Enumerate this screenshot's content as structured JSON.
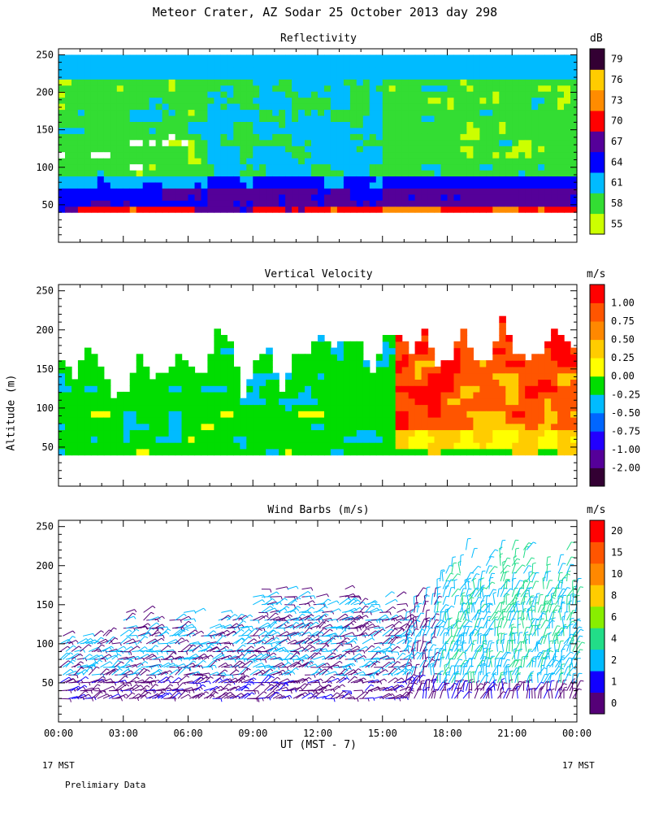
{
  "title": "Meteor Crater, AZ  Sodar  25 October 2013  day 298",
  "y_axis_label": "Altitude (m)",
  "x_axis_label": "UT  (MST - 7)",
  "footer": {
    "left_mst": "17 MST",
    "right_mst": "17 MST",
    "note": "Prelimiary Data"
  },
  "colors": {
    "reflectivity": [
      "#ccff00",
      "#33dd33",
      "#00bbff",
      "#0000ff",
      "#550099",
      "#ff0000",
      "#ff8c00",
      "#ffcc00",
      "#330033"
    ],
    "velocity": [
      "#330033",
      "#550099",
      "#2200ff",
      "#0066ff",
      "#00bbff",
      "#00dd00",
      "#ffff00",
      "#ffcc00",
      "#ff8800",
      "#ff5500",
      "#ff0000"
    ],
    "wind": [
      "#550077",
      "#1100ff",
      "#00bbff",
      "#22dd88",
      "#88ee00",
      "#ffcc00",
      "#ff8800",
      "#ff5500",
      "#ff0000"
    ]
  },
  "chart_data": [
    {
      "type": "heatmap",
      "title": "Reflectivity",
      "units": "dB",
      "ylim": [
        0,
        250
      ],
      "yticks": [
        "50",
        "100",
        "150",
        "200",
        "250"
      ],
      "xlim": [
        0,
        24
      ],
      "xticks": [
        "00:00",
        "03:00",
        "06:00",
        "09:00",
        "12:00",
        "15:00",
        "18:00",
        "21:00",
        "00:00"
      ],
      "colorbar_labels": [
        "55",
        "58",
        "61",
        "64",
        "67",
        "70",
        "73",
        "76",
        "79"
      ]
    },
    {
      "type": "heatmap",
      "title": "Vertical Velocity",
      "units": "m/s",
      "ylim": [
        0,
        250
      ],
      "yticks": [
        "50",
        "100",
        "150",
        "200",
        "250"
      ],
      "xlim": [
        0,
        24
      ],
      "colorbar_labels": [
        "-2.00",
        "-1.00",
        "-0.75",
        "-0.50",
        "-0.25",
        "0.00",
        "0.25",
        "0.50",
        "0.75",
        "1.00"
      ]
    },
    {
      "type": "scatter",
      "title": "Wind Barbs (m/s)",
      "units": "m/s",
      "ylim": [
        0,
        250
      ],
      "yticks": [
        "50",
        "100",
        "150",
        "200",
        "250"
      ],
      "xlim": [
        0,
        24
      ],
      "colorbar_labels": [
        "0",
        "1",
        "2",
        "4",
        "6",
        "8",
        "10",
        "15",
        "20"
      ]
    }
  ]
}
